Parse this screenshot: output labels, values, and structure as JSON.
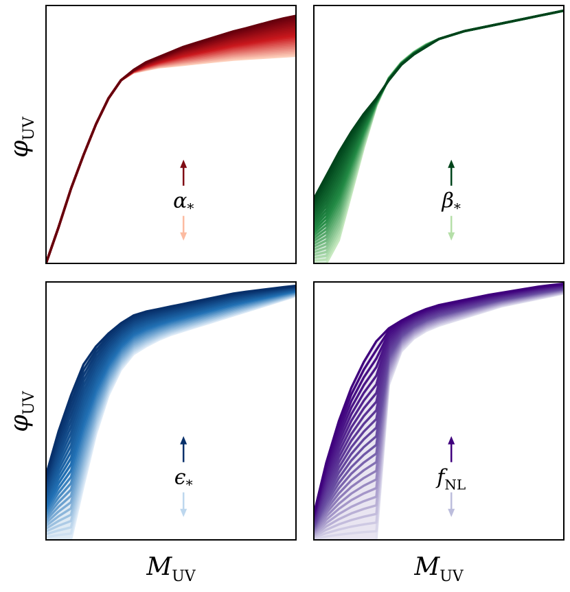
{
  "figure": {
    "ylabel_symbol": "φ",
    "ylabel_sub": "UV",
    "xlabel_symbol": "M",
    "xlabel_sub": "UV"
  },
  "chart_data": [
    {
      "type": "area",
      "panel": "top-left",
      "parameter": {
        "symbol": "α",
        "sub": "*"
      },
      "colors": {
        "dark": "#67000d",
        "mid": "#cb181d",
        "light": "#fdd0bc"
      },
      "arrow_colors": {
        "up": "#7f0b14",
        "down": "#fcbba1"
      },
      "xlabel": "",
      "ylabel": "",
      "ticks": "none",
      "grid": false,
      "n_curves": 24,
      "curves_description": "family of curves; the parameter increasing shifts the bright end upward, all meeting near x=0.33",
      "x": [
        0.0,
        0.05,
        0.1,
        0.15,
        0.2,
        0.25,
        0.3,
        0.35,
        0.4,
        0.45,
        0.5,
        0.55,
        0.6,
        0.65,
        0.7,
        0.75,
        0.8,
        0.85,
        0.9,
        0.95,
        1.0
      ],
      "series": [
        {
          "values": [
            0.0,
            0.14,
            0.29,
            0.42,
            0.54,
            0.64,
            0.71,
            0.74,
            0.75,
            0.76,
            0.765,
            0.77,
            0.775,
            0.78,
            0.785,
            0.79,
            0.793,
            0.796,
            0.799,
            0.802,
            0.805
          ]
        },
        {
          "values": [
            0.0,
            0.14,
            0.29,
            0.42,
            0.54,
            0.64,
            0.71,
            0.75,
            0.78,
            0.8,
            0.82,
            0.84,
            0.855,
            0.87,
            0.885,
            0.9,
            0.912,
            0.925,
            0.938,
            0.95,
            0.96
          ]
        }
      ]
    },
    {
      "type": "area",
      "panel": "top-right",
      "parameter": {
        "symbol": "β",
        "sub": "*"
      },
      "colors": {
        "dark": "#00441b",
        "mid": "#238b45",
        "light": "#c7e9c0"
      },
      "arrow_colors": {
        "up": "#00441b",
        "down": "#b5dfa8"
      },
      "xlabel": "",
      "ylabel": "",
      "ticks": "none",
      "grid": false,
      "n_curves": 24,
      "curves_description": "family of curves differing at the faint end, converging above x=0.33",
      "x": [
        0.0,
        0.05,
        0.1,
        0.15,
        0.2,
        0.25,
        0.3,
        0.35,
        0.4,
        0.45,
        0.5,
        0.55,
        0.6,
        0.65,
        0.7,
        0.75,
        0.8,
        0.85,
        0.9,
        0.95,
        1.0
      ],
      "series": [
        {
          "values": [
            0.0,
            0.0,
            0.09,
            0.27,
            0.45,
            0.61,
            0.72,
            0.78,
            0.82,
            0.85,
            0.87,
            0.885,
            0.9,
            0.91,
            0.92,
            0.93,
            0.94,
            0.95,
            0.96,
            0.97,
            0.98
          ]
        },
        {
          "values": [
            0.25,
            0.34,
            0.43,
            0.51,
            0.58,
            0.64,
            0.71,
            0.77,
            0.81,
            0.84,
            0.87,
            0.885,
            0.9,
            0.91,
            0.92,
            0.93,
            0.94,
            0.95,
            0.96,
            0.97,
            0.98
          ]
        }
      ]
    },
    {
      "type": "area",
      "panel": "bottom-left",
      "parameter": {
        "symbol": "ϵ",
        "sub": "*"
      },
      "colors": {
        "dark": "#08306b",
        "mid": "#2171b5",
        "light": "#deebf7"
      },
      "arrow_colors": {
        "up": "#08306b",
        "down": "#bdd7ee"
      },
      "xlabel": "",
      "ylabel": "",
      "ticks": "none",
      "grid": false,
      "n_curves": 24,
      "curves_description": "family of curves; the parameter increasing shifts the whole curve upward and toward the faint end",
      "x": [
        0.0,
        0.05,
        0.1,
        0.15,
        0.2,
        0.25,
        0.3,
        0.35,
        0.4,
        0.45,
        0.5,
        0.55,
        0.6,
        0.65,
        0.7,
        0.75,
        0.8,
        0.85,
        0.9,
        0.95,
        1.0
      ],
      "series": [
        {
          "values": [
            0.0,
            0.0,
            0.0,
            0.21,
            0.41,
            0.56,
            0.66,
            0.72,
            0.75,
            0.775,
            0.795,
            0.81,
            0.825,
            0.84,
            0.855,
            0.87,
            0.885,
            0.9,
            0.915,
            0.93,
            0.945
          ]
        },
        {
          "values": [
            0.25,
            0.42,
            0.56,
            0.68,
            0.75,
            0.8,
            0.84,
            0.87,
            0.885,
            0.895,
            0.905,
            0.915,
            0.925,
            0.935,
            0.945,
            0.955,
            0.962,
            0.968,
            0.974,
            0.98,
            0.985
          ]
        }
      ]
    },
    {
      "type": "area",
      "panel": "bottom-right",
      "parameter": {
        "symbol": "f",
        "sub": "NL"
      },
      "colors": {
        "dark": "#3f007d",
        "mid": "#6a51a3",
        "light": "#e3e2f0"
      },
      "arrow_colors": {
        "up": "#3f007d",
        "down": "#bcbddc"
      },
      "xlabel": "",
      "ylabel": "",
      "ticks": "none",
      "grid": false,
      "n_curves": 24,
      "curves_description": "family of curves; the parameter increasing raises the faint end and the bright end",
      "x": [
        0.0,
        0.05,
        0.1,
        0.15,
        0.2,
        0.25,
        0.3,
        0.35,
        0.4,
        0.45,
        0.5,
        0.55,
        0.6,
        0.65,
        0.7,
        0.75,
        0.8,
        0.85,
        0.9,
        0.95,
        1.0
      ],
      "series": [
        {
          "values": [
            0.0,
            0.0,
            0.0,
            0.0,
            0.0,
            0.0,
            0.6,
            0.73,
            0.78,
            0.81,
            0.83,
            0.845,
            0.86,
            0.875,
            0.89,
            0.905,
            0.915,
            0.925,
            0.935,
            0.945,
            0.955
          ]
        },
        {
          "values": [
            0.1,
            0.3,
            0.46,
            0.59,
            0.69,
            0.77,
            0.82,
            0.85,
            0.875,
            0.895,
            0.91,
            0.92,
            0.93,
            0.94,
            0.95,
            0.958,
            0.966,
            0.974,
            0.982,
            0.988,
            0.993
          ]
        }
      ]
    }
  ]
}
